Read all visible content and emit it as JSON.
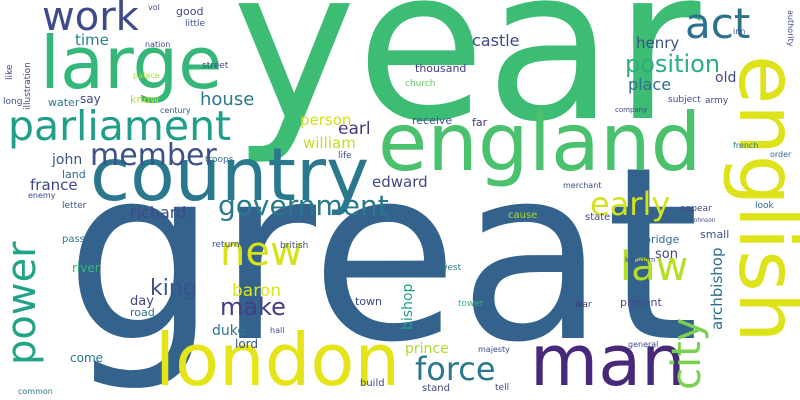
{
  "words": [
    {
      "text": "year",
      "color": "#3dbc74"
    },
    {
      "text": "great",
      "color": "#33638d"
    },
    {
      "text": "england",
      "color": "#4ac16d"
    },
    {
      "text": "country",
      "color": "#2a788e"
    },
    {
      "text": "english",
      "color": "#dde318"
    },
    {
      "text": "london",
      "color": "#e5e419"
    },
    {
      "text": "man",
      "color": "#482878"
    },
    {
      "text": "large",
      "color": "#35b779"
    },
    {
      "text": "parliament",
      "color": "#1f9e89"
    },
    {
      "text": "work",
      "color": "#3e4a89"
    },
    {
      "text": "act",
      "color": "#2c728e"
    },
    {
      "text": "member",
      "color": "#3b528b"
    },
    {
      "text": "government",
      "color": "#2a788e"
    },
    {
      "text": "early",
      "color": "#d2e21b"
    },
    {
      "text": "new",
      "color": "#d8e219"
    },
    {
      "text": "law",
      "color": "#b5de2b"
    },
    {
      "text": "power",
      "color": "#20a386"
    },
    {
      "text": "city",
      "color": "#7ad151"
    },
    {
      "text": "force",
      "color": "#2a788e"
    },
    {
      "text": "make",
      "color": "#433e85"
    },
    {
      "text": "king",
      "color": "#3b528b"
    },
    {
      "text": "position",
      "color": "#2ab07f"
    },
    {
      "text": "place",
      "color": "#2e6e8e"
    },
    {
      "text": "henry",
      "color": "#3b528b"
    },
    {
      "text": "old",
      "color": "#3e4989"
    },
    {
      "text": "house",
      "color": "#2a788e"
    },
    {
      "text": "time",
      "color": "#25858e"
    },
    {
      "text": "castle",
      "color": "#3e4989"
    },
    {
      "text": "william",
      "color": "#c0df25"
    },
    {
      "text": "earl",
      "color": "#453781"
    },
    {
      "text": "person",
      "color": "#d0e11c"
    },
    {
      "text": "john",
      "color": "#3b528b"
    },
    {
      "text": "france",
      "color": "#3f4788"
    },
    {
      "text": "land",
      "color": "#31688e"
    },
    {
      "text": "richard",
      "color": "#3e4989"
    },
    {
      "text": "edward",
      "color": "#3e4a89"
    },
    {
      "text": "baron",
      "color": "#dde318"
    },
    {
      "text": "duke",
      "color": "#2a788e"
    },
    {
      "text": "lord",
      "color": "#3b528b"
    },
    {
      "text": "day",
      "color": "#414487"
    },
    {
      "text": "road",
      "color": "#2c728e"
    },
    {
      "text": "come",
      "color": "#2a788e"
    },
    {
      "text": "river",
      "color": "#35b779"
    },
    {
      "text": "prince",
      "color": "#a8db34"
    },
    {
      "text": "bishop",
      "color": "#1f9e89"
    },
    {
      "text": "town",
      "color": "#3e4989"
    },
    {
      "text": "son",
      "color": "#3e4989"
    },
    {
      "text": "bridge",
      "color": "#31688e"
    },
    {
      "text": "archbishop",
      "color": "#2c728e"
    },
    {
      "text": "small",
      "color": "#3b528b"
    },
    {
      "text": "receive",
      "color": "#3b528b"
    },
    {
      "text": "far",
      "color": "#46327e"
    },
    {
      "text": "thousand",
      "color": "#433e85"
    },
    {
      "text": "church",
      "color": "#5ec962"
    },
    {
      "text": "say",
      "color": "#3e4989"
    },
    {
      "text": "water",
      "color": "#2a788e"
    },
    {
      "text": "long",
      "color": "#3b528b"
    },
    {
      "text": "know",
      "color": "#b5de2b"
    },
    {
      "text": "good",
      "color": "#3e4989"
    },
    {
      "text": "little",
      "color": "#3b528b"
    },
    {
      "text": "street",
      "color": "#3e4989"
    },
    {
      "text": "nation",
      "color": "#3e4989"
    },
    {
      "text": "palace",
      "color": "#a8db34"
    },
    {
      "text": "century",
      "color": "#3b528b"
    },
    {
      "text": "troops",
      "color": "#31688e"
    },
    {
      "text": "life",
      "color": "#3b528b"
    },
    {
      "text": "letter",
      "color": "#3b528b"
    },
    {
      "text": "pass",
      "color": "#2a788e"
    },
    {
      "text": "return",
      "color": "#3b528b"
    },
    {
      "text": "british",
      "color": "#3b528b"
    },
    {
      "text": "state",
      "color": "#3e4989"
    },
    {
      "text": "merchant",
      "color": "#3e4989"
    },
    {
      "text": "appear",
      "color": "#3e4989"
    },
    {
      "text": "look",
      "color": "#31688e"
    },
    {
      "text": "french",
      "color": "#2a788e"
    },
    {
      "text": "order",
      "color": "#31688e"
    },
    {
      "text": "company",
      "color": "#3e4989"
    },
    {
      "text": "subject",
      "color": "#3e4989"
    },
    {
      "text": "army",
      "color": "#3e4989"
    },
    {
      "text": "authority",
      "color": "#3e4989"
    },
    {
      "text": "inn",
      "color": "#3e4989"
    },
    {
      "text": "illustration",
      "color": "#3e4989"
    },
    {
      "text": "like",
      "color": "#3e4989"
    },
    {
      "text": "present",
      "color": "#3e4989"
    },
    {
      "text": "war",
      "color": "#46327e"
    },
    {
      "text": "tower",
      "color": "#35b779"
    },
    {
      "text": "west",
      "color": "#2a788e"
    },
    {
      "text": "hall",
      "color": "#3e4989"
    },
    {
      "text": "majesty",
      "color": "#3e4989"
    },
    {
      "text": "general",
      "color": "#3e4989"
    },
    {
      "text": "build",
      "color": "#3e4989"
    },
    {
      "text": "stand",
      "color": "#3e4989"
    },
    {
      "text": "tell",
      "color": "#3e4989"
    },
    {
      "text": "common",
      "color": "#2a788e"
    },
    {
      "text": "enemy",
      "color": "#3e4989"
    },
    {
      "text": "cause",
      "color": "#a8db34"
    },
    {
      "text": "vol",
      "color": "#3e4989"
    },
    {
      "text": "kingdom",
      "color": "#3e4989"
    },
    {
      "text": "johnson",
      "color": "#3e4989"
    }
  ]
}
